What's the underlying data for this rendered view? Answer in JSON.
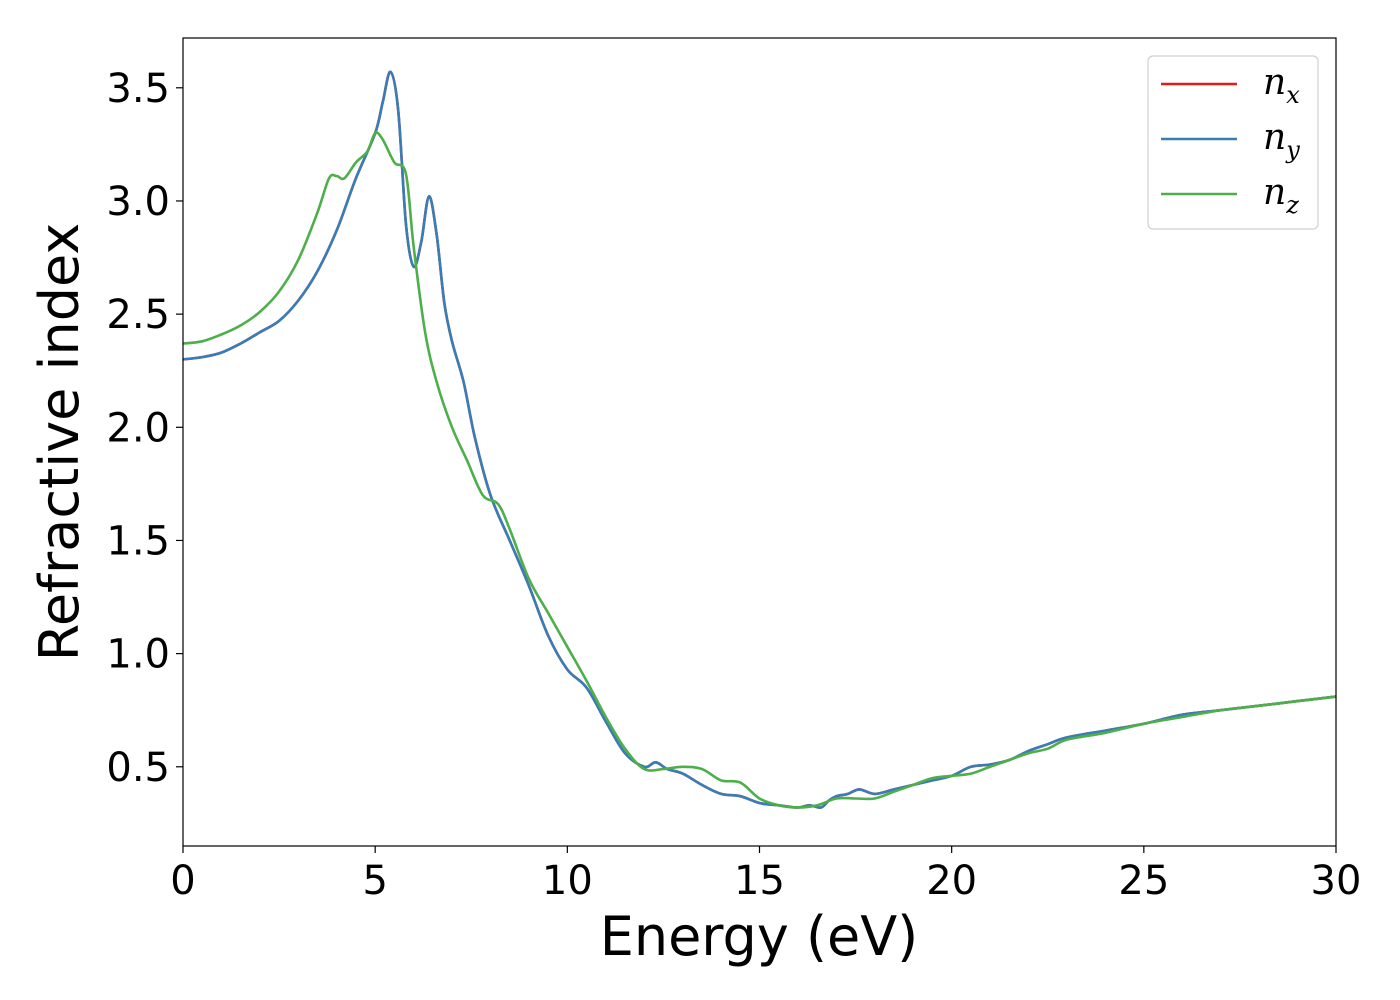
{
  "chart_data": {
    "type": "line",
    "title": "",
    "xlabel": "Energy (eV)",
    "ylabel": "Refractive index",
    "xlim": [
      0,
      30
    ],
    "ylim": [
      0.15,
      3.72
    ],
    "xticks": [
      0,
      5,
      10,
      15,
      20,
      25,
      30
    ],
    "yticks": [
      0.5,
      1.0,
      1.5,
      2.0,
      2.5,
      3.0,
      3.5
    ],
    "xtick_labels": [
      "0",
      "5",
      "10",
      "15",
      "20",
      "25",
      "30"
    ],
    "ytick_labels": [
      "0.5",
      "1.0",
      "1.5",
      "2.0",
      "2.5",
      "3.0",
      "3.5"
    ],
    "grid": false,
    "legend_position": "top-right",
    "series": [
      {
        "name": "n",
        "sub": "x",
        "color": "#e41a1c",
        "x": [
          0,
          0.5,
          1,
          1.5,
          2,
          2.5,
          3,
          3.5,
          4,
          4.5,
          5,
          5.2,
          5.4,
          5.6,
          5.8,
          6,
          6.2,
          6.4,
          6.6,
          6.8,
          7,
          7.3,
          7.6,
          8,
          8.5,
          9,
          9.5,
          10,
          10.5,
          11,
          11.5,
          12,
          12.3,
          12.6,
          13,
          13.5,
          14,
          14.5,
          15,
          15.5,
          16,
          16.3,
          16.6,
          16.8,
          17,
          17.3,
          17.6,
          18,
          18.5,
          19,
          19.5,
          20,
          20.5,
          21,
          21.5,
          22,
          22.5,
          23,
          24,
          25,
          26,
          27,
          28,
          29,
          30
        ],
        "y": [
          2.3,
          2.31,
          2.33,
          2.37,
          2.42,
          2.47,
          2.56,
          2.69,
          2.87,
          3.1,
          3.3,
          3.44,
          3.57,
          3.4,
          2.9,
          2.71,
          2.82,
          3.02,
          2.85,
          2.55,
          2.38,
          2.2,
          1.95,
          1.7,
          1.5,
          1.3,
          1.08,
          0.93,
          0.85,
          0.7,
          0.56,
          0.5,
          0.52,
          0.49,
          0.47,
          0.42,
          0.38,
          0.37,
          0.34,
          0.33,
          0.32,
          0.33,
          0.32,
          0.35,
          0.37,
          0.38,
          0.4,
          0.38,
          0.4,
          0.42,
          0.44,
          0.46,
          0.5,
          0.51,
          0.53,
          0.57,
          0.6,
          0.63,
          0.66,
          0.69,
          0.73,
          0.75,
          0.77,
          0.79,
          0.81
        ]
      },
      {
        "name": "n",
        "sub": "y",
        "color": "#377eb8",
        "x": [
          0,
          0.5,
          1,
          1.5,
          2,
          2.5,
          3,
          3.5,
          4,
          4.5,
          5,
          5.2,
          5.4,
          5.6,
          5.8,
          6,
          6.2,
          6.4,
          6.6,
          6.8,
          7,
          7.3,
          7.6,
          8,
          8.5,
          9,
          9.5,
          10,
          10.5,
          11,
          11.5,
          12,
          12.3,
          12.6,
          13,
          13.5,
          14,
          14.5,
          15,
          15.5,
          16,
          16.3,
          16.6,
          16.8,
          17,
          17.3,
          17.6,
          18,
          18.5,
          19,
          19.5,
          20,
          20.5,
          21,
          21.5,
          22,
          22.5,
          23,
          24,
          25,
          26,
          27,
          28,
          29,
          30
        ],
        "y": [
          2.3,
          2.31,
          2.33,
          2.37,
          2.42,
          2.47,
          2.56,
          2.69,
          2.87,
          3.1,
          3.3,
          3.44,
          3.57,
          3.4,
          2.9,
          2.71,
          2.82,
          3.02,
          2.85,
          2.55,
          2.38,
          2.2,
          1.95,
          1.7,
          1.5,
          1.3,
          1.08,
          0.93,
          0.85,
          0.7,
          0.56,
          0.5,
          0.52,
          0.49,
          0.47,
          0.42,
          0.38,
          0.37,
          0.34,
          0.33,
          0.32,
          0.33,
          0.32,
          0.35,
          0.37,
          0.38,
          0.4,
          0.38,
          0.4,
          0.42,
          0.44,
          0.46,
          0.5,
          0.51,
          0.53,
          0.57,
          0.6,
          0.63,
          0.66,
          0.69,
          0.73,
          0.75,
          0.77,
          0.79,
          0.81
        ]
      },
      {
        "name": "n",
        "sub": "z",
        "color": "#4daf4a",
        "x": [
          0,
          0.5,
          1,
          1.5,
          2,
          2.5,
          3,
          3.5,
          3.8,
          4,
          4.2,
          4.5,
          4.8,
          5,
          5.2,
          5.5,
          5.8,
          6,
          6.3,
          6.6,
          7,
          7.4,
          7.8,
          8.2,
          8.5,
          9,
          9.5,
          10,
          10.5,
          11,
          11.5,
          12,
          12.5,
          13,
          13.5,
          14,
          14.5,
          15,
          15.5,
          16,
          16.5,
          17,
          17.5,
          18,
          18.5,
          19,
          19.5,
          20,
          20.5,
          21,
          21.5,
          22,
          22.5,
          23,
          24,
          25,
          26,
          27,
          28,
          29,
          30
        ],
        "y": [
          2.37,
          2.38,
          2.41,
          2.45,
          2.51,
          2.6,
          2.74,
          2.95,
          3.1,
          3.11,
          3.1,
          3.17,
          3.22,
          3.3,
          3.27,
          3.17,
          3.12,
          2.8,
          2.42,
          2.2,
          2.0,
          1.85,
          1.7,
          1.66,
          1.55,
          1.33,
          1.18,
          1.03,
          0.88,
          0.72,
          0.58,
          0.49,
          0.49,
          0.5,
          0.49,
          0.44,
          0.43,
          0.36,
          0.33,
          0.32,
          0.33,
          0.36,
          0.36,
          0.36,
          0.39,
          0.42,
          0.45,
          0.46,
          0.47,
          0.5,
          0.53,
          0.56,
          0.58,
          0.62,
          0.65,
          0.69,
          0.72,
          0.75,
          0.77,
          0.79,
          0.81
        ]
      }
    ]
  }
}
